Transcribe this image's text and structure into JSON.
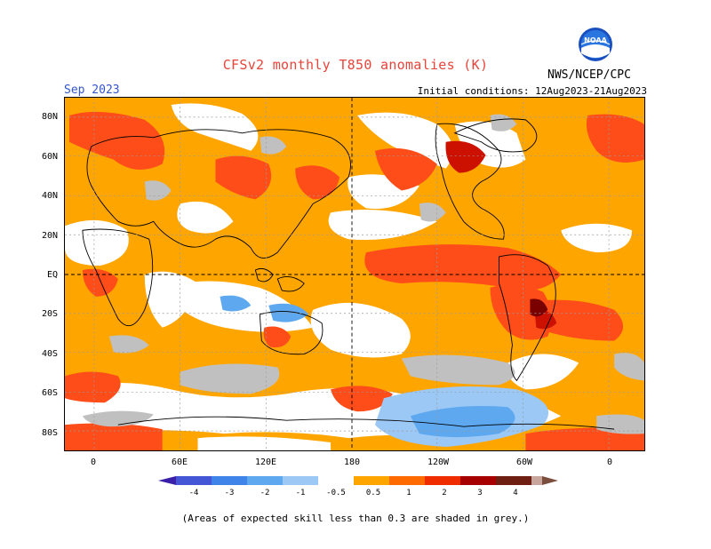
{
  "header": {
    "title": "CFSv2 monthly T850 anomalies (K)",
    "month": "Sep 2023",
    "initial_conditions": "Initial conditions: 12Aug2023-21Aug2023",
    "agency": "NWS/NCEP/CPC",
    "logo_text": "NOAA"
  },
  "axes": {
    "lat_labels": [
      "80N",
      "60N",
      "40N",
      "20N",
      "EQ",
      "20S",
      "40S",
      "60S",
      "80S"
    ],
    "lon_labels": [
      "0",
      "60E",
      "120E",
      "180",
      "120W",
      "60W",
      "0"
    ]
  },
  "colorbar": {
    "ticks": [
      "-4",
      "-3",
      "-2",
      "-1",
      "-0.5",
      "0.5",
      "1",
      "2",
      "3",
      "4"
    ],
    "colors": [
      "#3a1fa8",
      "#4455d6",
      "#3f84e8",
      "#5ea8f0",
      "#9cc8f5",
      "#ffffff",
      "#ffa500",
      "#ff6a00",
      "#ee2c00",
      "#a60000",
      "#6f1e12",
      "#c8a69d",
      "#7a4d3d"
    ]
  },
  "legend_colors": {
    "ocean_background": "#ffffff",
    "low_skill_grey": "#c0c0c0",
    "warm_05_1": "#ffa500",
    "warm_1_2": "#ff4d1a",
    "warm_2_3": "#cc1100",
    "warm_3_4": "#7a0000",
    "cool_05_1": "#9cc8f5",
    "cool_1_2": "#5ea8f0",
    "cool_2_3": "#3f84e8"
  },
  "footnote": "(Areas of expected skill less than 0.3 are shaded in grey.)"
}
